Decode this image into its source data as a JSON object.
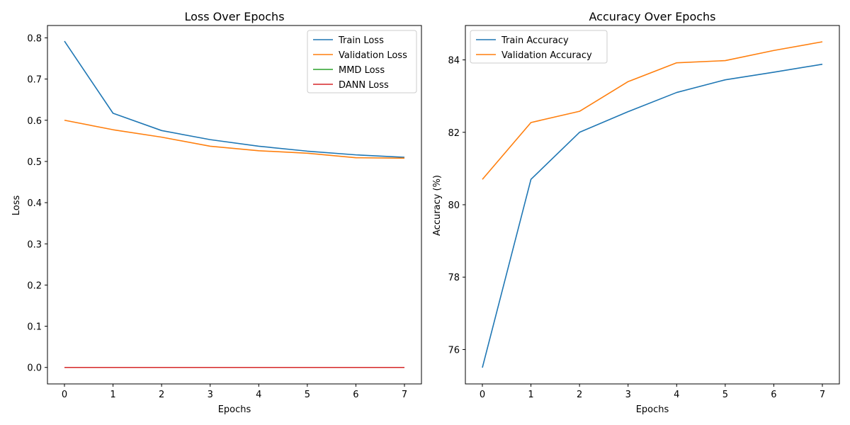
{
  "colors": {
    "blue": "#1f77b4",
    "orange": "#ff7f0e",
    "green": "#2ca02c",
    "red": "#d62728"
  },
  "chart_data": [
    {
      "type": "line",
      "title": "Loss Over Epochs",
      "xlabel": "Epochs",
      "ylabel": "Loss",
      "x": [
        0,
        1,
        2,
        3,
        4,
        5,
        6,
        7
      ],
      "xlim": [
        -0.35,
        7.35
      ],
      "ylim": [
        -0.04,
        0.83
      ],
      "xticks": [
        0,
        1,
        2,
        3,
        4,
        5,
        6,
        7
      ],
      "yticks": [
        0.0,
        0.1,
        0.2,
        0.3,
        0.4,
        0.5,
        0.6,
        0.7,
        0.8
      ],
      "ytick_labels": [
        "0.0",
        "0.1",
        "0.2",
        "0.3",
        "0.4",
        "0.5",
        "0.6",
        "0.7",
        "0.8"
      ],
      "grid": false,
      "legend_position": "top-right",
      "series": [
        {
          "name": "Train Loss",
          "color": "#1f77b4",
          "values": [
            0.792,
            0.617,
            0.575,
            0.553,
            0.537,
            0.525,
            0.516,
            0.51
          ]
        },
        {
          "name": "Validation Loss",
          "color": "#ff7f0e",
          "values": [
            0.6,
            0.577,
            0.559,
            0.537,
            0.526,
            0.52,
            0.509,
            0.508
          ]
        },
        {
          "name": "MMD Loss",
          "color": "#2ca02c",
          "values": [
            0,
            0,
            0,
            0,
            0,
            0,
            0,
            0
          ]
        },
        {
          "name": "DANN Loss",
          "color": "#d62728",
          "values": [
            0,
            0,
            0,
            0,
            0,
            0,
            0,
            0
          ]
        }
      ]
    },
    {
      "type": "line",
      "title": "Accuracy Over Epochs",
      "xlabel": "Epochs",
      "ylabel": "Accuracy (%)",
      "x": [
        0,
        1,
        2,
        3,
        4,
        5,
        6,
        7
      ],
      "xlim": [
        -0.35,
        7.35
      ],
      "ylim": [
        75.05,
        84.95
      ],
      "xticks": [
        0,
        1,
        2,
        3,
        4,
        5,
        6,
        7
      ],
      "yticks": [
        76,
        78,
        80,
        82,
        84
      ],
      "ytick_labels": [
        "76",
        "78",
        "80",
        "82",
        "84"
      ],
      "grid": false,
      "legend_position": "top-left",
      "series": [
        {
          "name": "Train Accuracy",
          "color": "#1f77b4",
          "values": [
            75.5,
            80.7,
            82.0,
            82.57,
            83.1,
            83.45,
            83.66,
            83.88
          ]
        },
        {
          "name": "Validation Accuracy",
          "color": "#ff7f0e",
          "values": [
            80.7,
            82.27,
            82.58,
            83.4,
            83.92,
            83.98,
            84.26,
            84.5
          ]
        }
      ]
    }
  ]
}
